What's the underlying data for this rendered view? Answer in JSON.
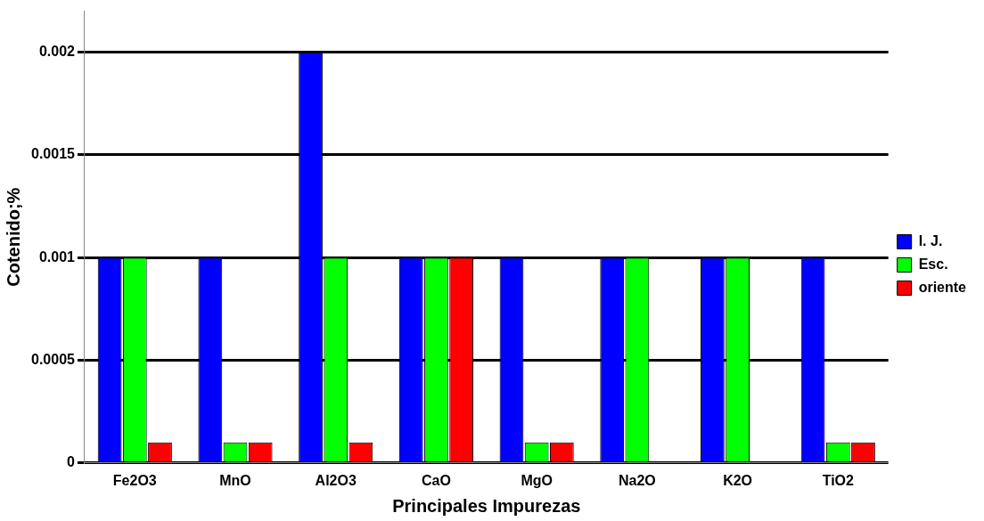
{
  "chart_data": {
    "type": "bar",
    "xlabel": "Principales Impurezas",
    "ylabel": "Cotenido;%",
    "categories": [
      "Fe2O3",
      "MnO",
      "Al2O3",
      "CaO",
      "MgO",
      "Na2O",
      "K2O",
      "TiO2"
    ],
    "series": [
      {
        "name": "I. J.",
        "color": "#0000ff",
        "values": [
          0.001,
          0.001,
          0.002,
          0.001,
          0.001,
          0.001,
          0.001,
          0.001
        ]
      },
      {
        "name": "Esc.",
        "color": "#00ff00",
        "values": [
          0.001,
          0.0001,
          0.001,
          0.001,
          0.0001,
          0.001,
          0.001,
          0.0001
        ]
      },
      {
        "name": "oriente",
        "color": "#ff0000",
        "values": [
          0.0001,
          0.0001,
          0.0001,
          0.001,
          0.0001,
          null,
          null,
          0.0001
        ]
      }
    ],
    "ylim": [
      0,
      0.0022
    ],
    "yticks": [
      0,
      0.0005,
      0.001,
      0.0015,
      0.002
    ],
    "grid": "y",
    "legend": "right"
  }
}
